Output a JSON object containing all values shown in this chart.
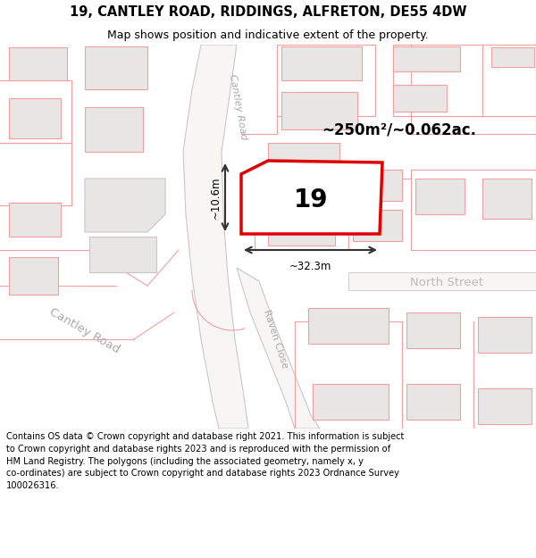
{
  "title_line1": "19, CANTLEY ROAD, RIDDINGS, ALFRETON, DE55 4DW",
  "title_line2": "Map shows position and indicative extent of the property.",
  "footer_text": "Contains OS data © Crown copyright and database right 2021. This information is subject\nto Crown copyright and database rights 2023 and is reproduced with the permission of\nHM Land Registry. The polygons (including the associated geometry, namely x, y\nco-ordinates) are subject to Crown copyright and database rights 2023 Ordnance Survey\n100026316.",
  "map_bg": "#ffffff",
  "title_bg": "#ffffff",
  "footer_bg": "#ffffff",
  "property_outline_color": "#e00000",
  "building_fill": "#e8e6e4",
  "building_edge": "#c8c8c8",
  "road_line_color": "#f0a0a0",
  "road_fill": "#f5f0f0",
  "road_label_color": "#aaaaaa",
  "dim_color": "#333333",
  "label_19": "19",
  "area_label": "~250m²/~0.062ac.",
  "dim_width": "~32.3m",
  "dim_height": "~10.6m",
  "street_cantley_diag": "Cantley Road",
  "street_cantley_horiz": "Cantley Road",
  "street_north": "North Street",
  "street_raven": "Raven Close"
}
